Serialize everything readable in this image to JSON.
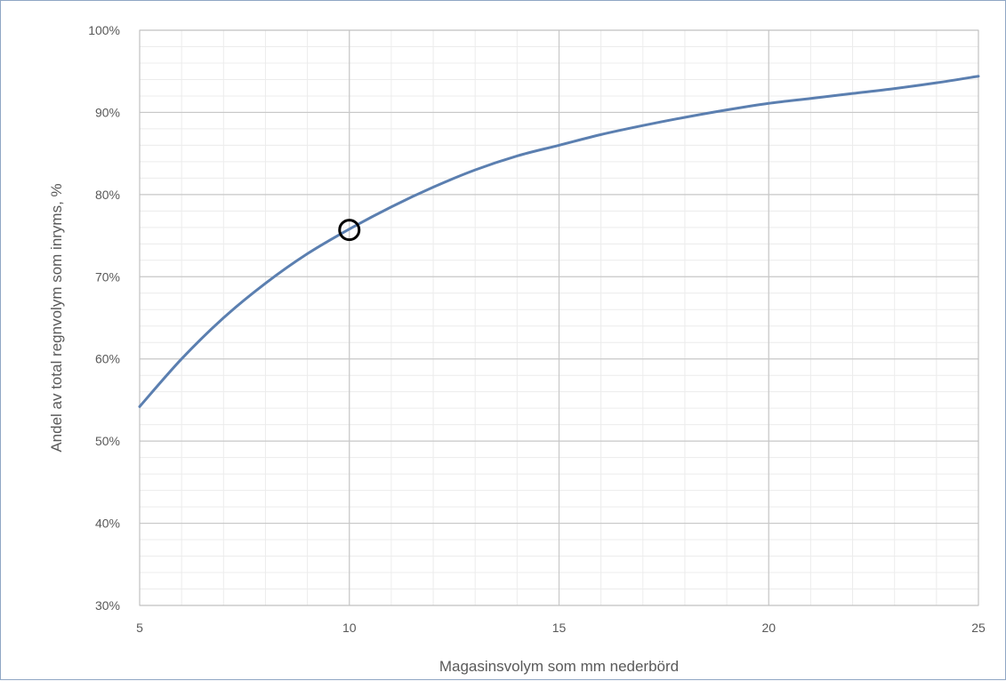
{
  "chart_data": {
    "type": "line",
    "title": "",
    "xlabel": "Magasinsvolym som mm nederbörd",
    "ylabel": "Andel av total regnvolym som inryms, %",
    "xlim": [
      5,
      25
    ],
    "ylim": [
      30,
      100
    ],
    "x_ticks": [
      "5",
      "10",
      "15",
      "20",
      "25"
    ],
    "y_ticks": [
      "30%",
      "40%",
      "50%",
      "60%",
      "70%",
      "80%",
      "90%",
      "100%"
    ],
    "grid": true,
    "legend": "none",
    "series": [
      {
        "color": "#5b7fb0",
        "x": [
          5,
          6,
          7,
          8,
          9,
          10,
          11,
          12,
          13,
          14,
          15,
          16,
          17,
          18,
          19,
          20,
          21,
          22,
          23,
          24,
          25
        ],
        "y": [
          54.2,
          60.0,
          65.0,
          69.2,
          72.8,
          75.8,
          78.5,
          80.9,
          83.0,
          84.7,
          86.0,
          87.3,
          88.4,
          89.4,
          90.3,
          91.1,
          91.7,
          92.3,
          92.9,
          93.6,
          94.4
        ]
      }
    ],
    "annotations": [
      {
        "type": "circle-marker",
        "x": 10,
        "y": 75.7
      }
    ]
  }
}
